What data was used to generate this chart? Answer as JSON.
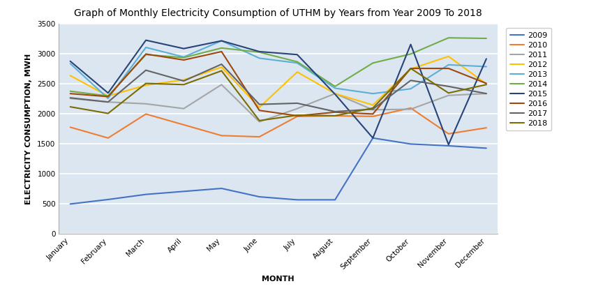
{
  "title": "Graph of Monthly Electricity Consumption of UTHM by Years from Year 2009 To 2018",
  "xlabel": "MONTH",
  "ylabel": "ELECTRICITY CONSUMPTION, MWH",
  "months": [
    "January",
    "February",
    "March",
    "April",
    "May",
    "June",
    "July",
    "August",
    "September",
    "October",
    "November",
    "December"
  ],
  "ylim": [
    0,
    3500
  ],
  "yticks": [
    0,
    500,
    1000,
    1500,
    2000,
    2500,
    3000,
    3500
  ],
  "series": {
    "2009": {
      "color": "#4472c4",
      "values": [
        500,
        575,
        660,
        710,
        760,
        620,
        570,
        570,
        1600,
        1500,
        1470,
        1430
      ]
    },
    "2010": {
      "color": "#ed7d31",
      "values": [
        1780,
        1600,
        2000,
        1820,
        1640,
        1620,
        1960,
        1970,
        1960,
        2100,
        1670,
        1770
      ]
    },
    "2011": {
      "color": "#a5a5a5",
      "values": [
        2260,
        2200,
        2170,
        2090,
        2490,
        1870,
        2090,
        2340,
        2070,
        2080,
        2310,
        2340
      ]
    },
    "2012": {
      "color": "#ffc000",
      "values": [
        2640,
        2300,
        2480,
        2570,
        2780,
        2110,
        2700,
        2340,
        2150,
        2750,
        2960,
        2500
      ]
    },
    "2013": {
      "color": "#5bafd6",
      "values": [
        2840,
        2260,
        3110,
        2950,
        3220,
        2930,
        2850,
        2430,
        2340,
        2420,
        2820,
        2790
      ]
    },
    "2014": {
      "color": "#70ad47",
      "values": [
        2380,
        2300,
        2990,
        2940,
        3100,
        3030,
        2870,
        2460,
        2850,
        3000,
        3270,
        3260
      ]
    },
    "2015": {
      "color": "#264478",
      "values": [
        2880,
        2350,
        3230,
        3090,
        3220,
        3040,
        2990,
        2330,
        1600,
        3160,
        1490,
        2920
      ]
    },
    "2016": {
      "color": "#9e480e",
      "values": [
        2340,
        2290,
        3000,
        2900,
        3040,
        2060,
        1970,
        2030,
        2000,
        2760,
        2760,
        2510
      ]
    },
    "2017": {
      "color": "#636363",
      "values": [
        2270,
        2200,
        2730,
        2550,
        2830,
        2160,
        2180,
        2040,
        2080,
        2560,
        2460,
        2340
      ]
    },
    "2018": {
      "color": "#7b6c00",
      "values": [
        2120,
        2010,
        2510,
        2490,
        2720,
        1890,
        1980,
        1970,
        2100,
        2760,
        2350,
        2490
      ]
    }
  },
  "legend_order": [
    "2009",
    "2010",
    "2011",
    "2012",
    "2013",
    "2014",
    "2015",
    "2016",
    "2017",
    "2018"
  ],
  "background_color": "#dce6f1",
  "grid_color": "#ffffff",
  "fig_bg": "#ffffff",
  "line_width": 1.5,
  "title_fontsize": 10,
  "axis_label_fontsize": 8,
  "tick_fontsize": 7.5,
  "legend_fontsize": 8
}
